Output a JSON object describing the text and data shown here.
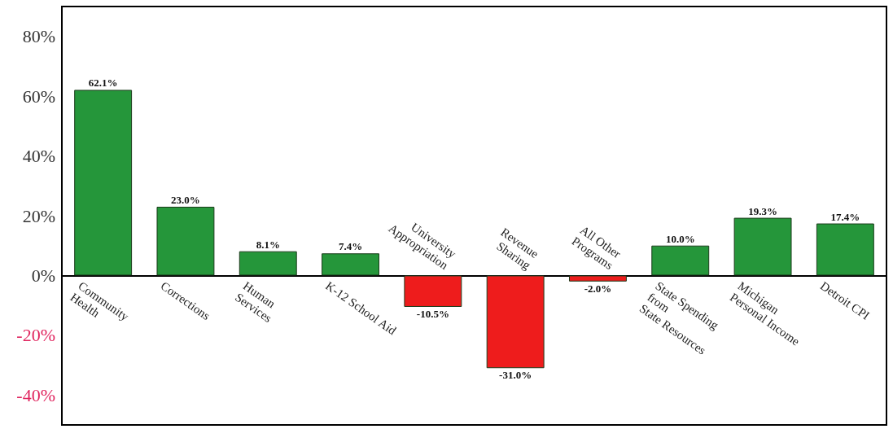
{
  "chart_data": {
    "type": "bar",
    "categories": [
      "Community\nHealth",
      "Corrections",
      "Human\nServices",
      "K-12 School Aid",
      "University\nAppropriation",
      "Revenue\nSharing",
      "All Other\nPrograms",
      "State Spending\nfrom\nState Resources",
      "Michigan\nPersonal Income",
      "Detroit CPI"
    ],
    "values": [
      62.1,
      23.0,
      8.1,
      7.4,
      -10.5,
      -31.0,
      -2.0,
      10.0,
      19.3,
      17.4
    ],
    "colors": [
      "#25963a",
      "#25963a",
      "#25963a",
      "#25963a",
      "#ee1c1c",
      "#ee1c1c",
      "#ee1c1c",
      "#25963a",
      "#25963a",
      "#25963a"
    ],
    "value_labels": [
      "62.1%",
      "23.0%",
      "8.1%",
      "7.4%",
      "-10.5%",
      "-31.0%",
      "-2.0%",
      "10.0%",
      "19.3%",
      "17.4%"
    ],
    "ylim": [
      -50,
      90
    ],
    "yticks": [
      {
        "value": -40,
        "label": "-40%"
      },
      {
        "value": -20,
        "label": "-20%"
      },
      {
        "value": 0,
        "label": "0%"
      },
      {
        "value": 20,
        "label": "20%"
      },
      {
        "value": 40,
        "label": "40%"
      },
      {
        "value": 60,
        "label": "60%"
      },
      {
        "value": 80,
        "label": "80%"
      }
    ],
    "tick_labels": "y"
  }
}
